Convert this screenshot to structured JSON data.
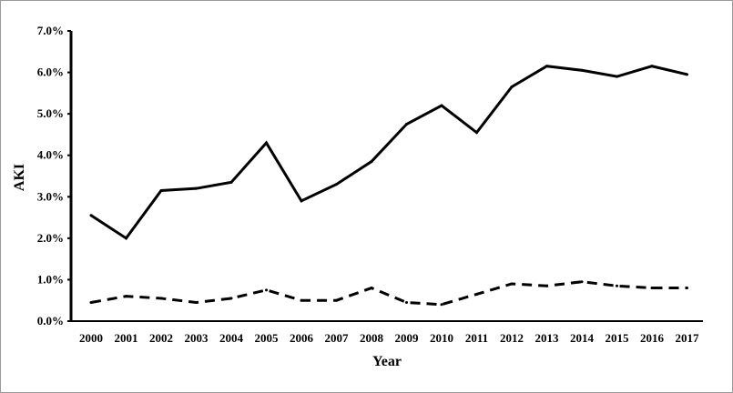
{
  "chart_data": {
    "type": "line",
    "xlabel": "Year",
    "ylabel": "AKI",
    "categories": [
      "2000",
      "2001",
      "2002",
      "2003",
      "2004",
      "2005",
      "2006",
      "2007",
      "2008",
      "2009",
      "2010",
      "2011",
      "2012",
      "2013",
      "2014",
      "2015",
      "2016",
      "2017"
    ],
    "y_ticks": [
      "0.0%",
      "1.0%",
      "2.0%",
      "3.0%",
      "4.0%",
      "5.0%",
      "6.0%",
      "7.0%"
    ],
    "ylim": [
      0,
      7
    ],
    "grid": false,
    "series": [
      {
        "style": "solid",
        "values": [
          2.55,
          2.0,
          3.15,
          3.2,
          3.35,
          4.3,
          2.9,
          3.3,
          3.85,
          4.75,
          5.2,
          4.55,
          5.65,
          6.15,
          6.05,
          5.9,
          6.15,
          5.95
        ]
      },
      {
        "style": "dashed",
        "values": [
          0.45,
          0.6,
          0.55,
          0.45,
          0.55,
          0.75,
          0.5,
          0.5,
          0.8,
          0.45,
          0.4,
          0.65,
          0.9,
          0.85,
          0.95,
          0.85,
          0.8,
          0.8
        ]
      }
    ]
  }
}
